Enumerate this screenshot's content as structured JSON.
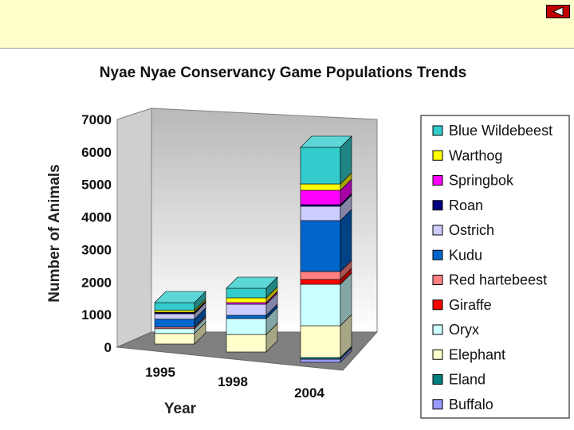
{
  "header": {
    "back_icon": "back-arrow-icon"
  },
  "chart_data": {
    "type": "bar",
    "stacked": true,
    "three_d": true,
    "title": "Nyae Nyae Conservancy Game Populations Trends",
    "xlabel": "Year",
    "ylabel": "Number of Animals",
    "categories": [
      "1995",
      "1998",
      "2004"
    ],
    "ylim": [
      0,
      7000
    ],
    "yticks": [
      "0",
      "1000",
      "2000",
      "3000",
      "4000",
      "5000",
      "6000",
      "7000"
    ],
    "legend_position": "right",
    "series": [
      {
        "name": "Buffalo",
        "color": "#9999ff",
        "values": [
          0,
          0,
          100
        ]
      },
      {
        "name": "Eland",
        "color": "#008080",
        "values": [
          0,
          0,
          50
        ]
      },
      {
        "name": "Elephant",
        "color": "#ffffcc",
        "values": [
          330,
          550,
          1000
        ]
      },
      {
        "name": "Oryx",
        "color": "#ccffff",
        "values": [
          150,
          500,
          1300
        ]
      },
      {
        "name": "Giraffe",
        "color": "#ff0000",
        "values": [
          0,
          0,
          150
        ]
      },
      {
        "name": "Red hartebeest",
        "color": "#ff8080",
        "values": [
          50,
          0,
          250
        ]
      },
      {
        "name": "Kudu",
        "color": "#0066cc",
        "values": [
          250,
          100,
          1600
        ]
      },
      {
        "name": "Ostrich",
        "color": "#ccccff",
        "values": [
          170,
          350,
          450
        ]
      },
      {
        "name": "Roan",
        "color": "#000080",
        "values": [
          30,
          0,
          50
        ]
      },
      {
        "name": "Springbok",
        "color": "#ff00ff",
        "values": [
          20,
          50,
          450
        ]
      },
      {
        "name": "Warthog",
        "color": "#ffff00",
        "values": [
          60,
          150,
          200
        ]
      },
      {
        "name": "Blue Wildebeest",
        "color": "#33cccc",
        "values": [
          240,
          300,
          1150
        ]
      }
    ]
  }
}
